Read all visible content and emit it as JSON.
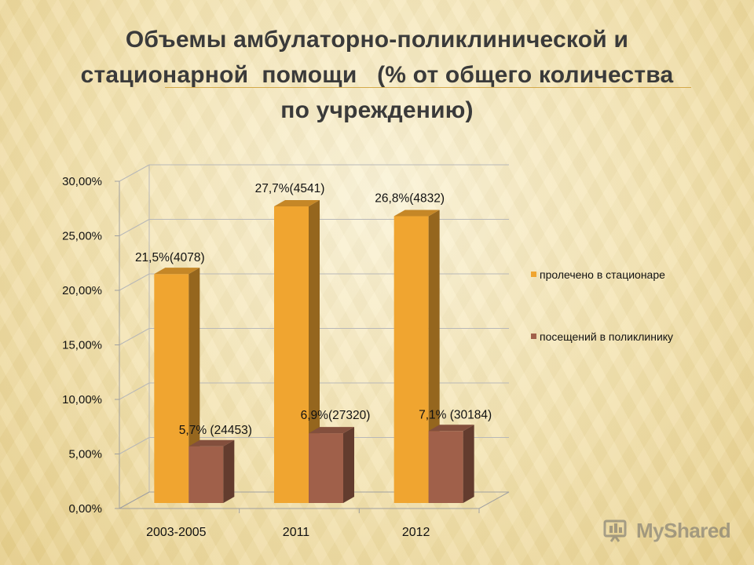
{
  "title": {
    "lines": [
      "Объемы амбулаторно-поликлинической и",
      "стационарной  помощи   (% от общего количества",
      "по учреждению)"
    ]
  },
  "chart_data": {
    "type": "bar",
    "categories": [
      "2003-2005",
      "2011",
      "2012"
    ],
    "series": [
      {
        "name": "пролечено в стационаре",
        "values": [
          21.5,
          27.7,
          26.8
        ],
        "labels": [
          "21,5%(4078)",
          "27,7%(4541)",
          "26,8%(4832)"
        ],
        "color": "#f0a530"
      },
      {
        "name": "посещений в поликлинику",
        "values": [
          5.7,
          6.9,
          7.1
        ],
        "labels": [
          "5,7% (24453)",
          "6,9%(27320)",
          "7,1% (30184)"
        ],
        "color": "#a0604a"
      }
    ],
    "y_ticks": [
      "0,00%",
      "5,00%",
      "10,00%",
      "15,00%",
      "20,00%",
      "25,00%",
      "30,00%"
    ],
    "ylim": [
      0,
      30
    ],
    "grid": true,
    "three_d": true,
    "legend_position": "right"
  },
  "watermark": {
    "text": "MyShared"
  }
}
